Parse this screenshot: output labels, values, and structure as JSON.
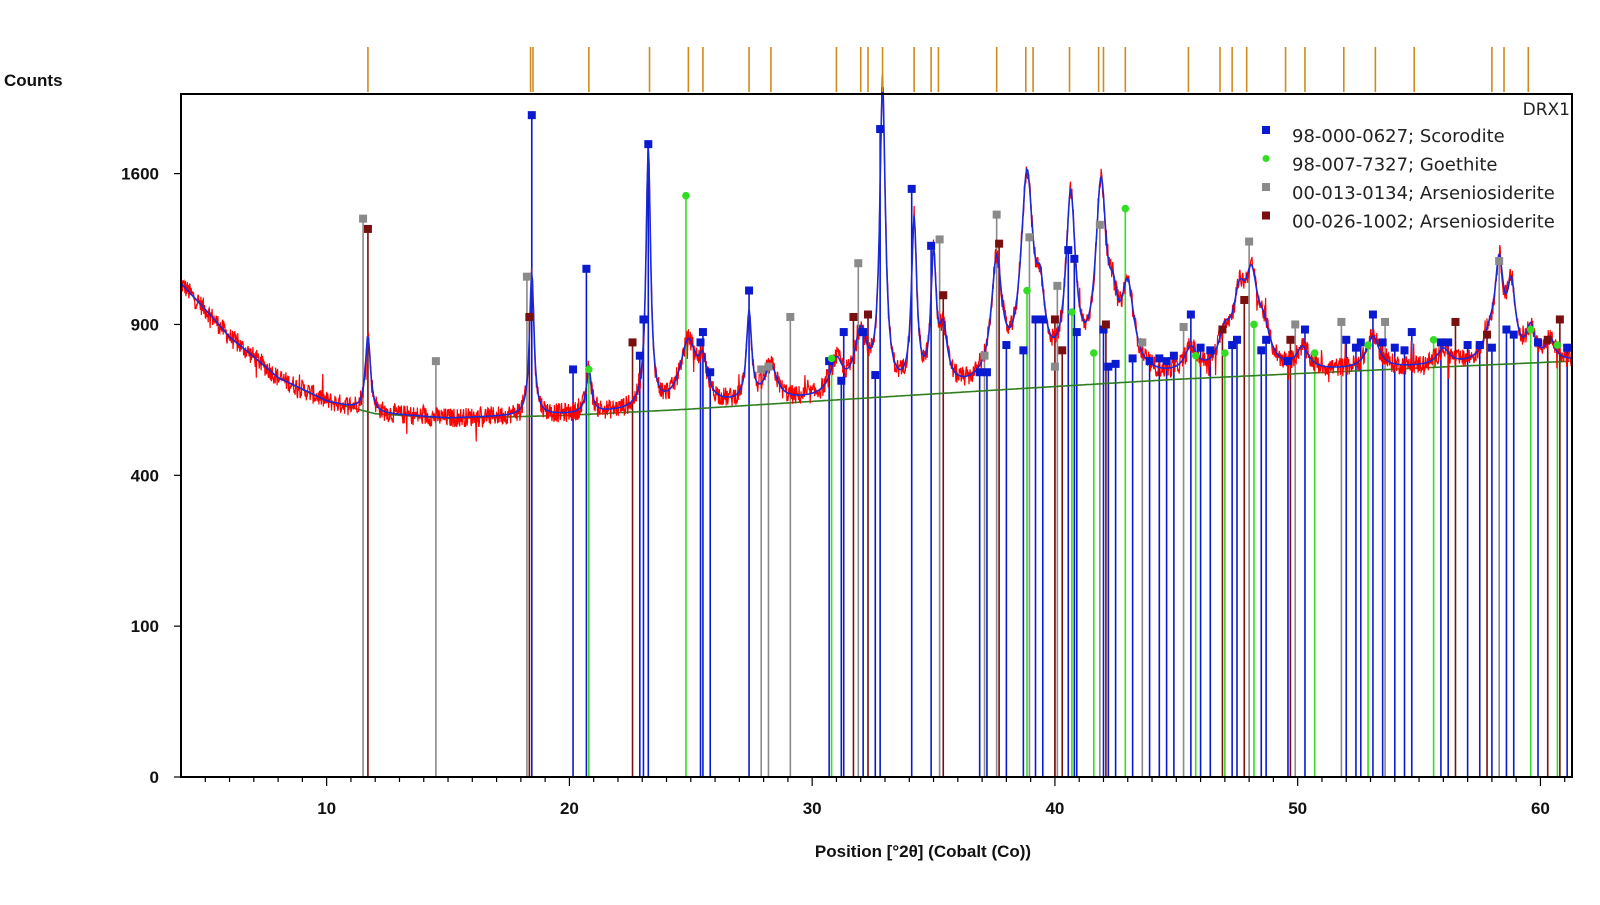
{
  "chart_data": {
    "type": "line",
    "xlabel": "Position [°2θ] (Cobalt (Co))",
    "ylabel": "Counts",
    "series_title": "DRX1",
    "xlim": [
      4,
      61.3
    ],
    "x_ticks": [
      10,
      20,
      30,
      40,
      50,
      60
    ],
    "y_ticks": [
      0,
      100,
      400,
      900,
      1600
    ],
    "y_scale": "sqrt",
    "ylim": [
      0,
      2050
    ],
    "grid": false,
    "legend_position": "top-right",
    "colors": {
      "observed": "#ff0000",
      "calculated": "#1a2ad8",
      "background": "#2e7d1e",
      "difference_ticks": "#d08a1e",
      "scorodite": "#0a1ad0",
      "goethite": "#33dd22",
      "arseniosiderite_013": "#8a8a8a",
      "arseniosiderite_026": "#7a0f0f"
    },
    "legend": [
      {
        "key": "scorodite",
        "label": "98-000-0627; Scorodite",
        "marker": "square",
        "color": "#0a1ad0"
      },
      {
        "key": "goethite",
        "label": "98-007-7327; Goethite",
        "marker": "circle",
        "color": "#33dd22"
      },
      {
        "key": "arseniosiderite_013",
        "label": "00-013-0134; Arseniosiderite",
        "marker": "square",
        "color": "#8a8a8a"
      },
      {
        "key": "arseniosiderite_026",
        "label": "00-026-1002; Arseniosiderite",
        "marker": "square",
        "color": "#7a0f0f"
      }
    ],
    "background_curve": {
      "x": [
        4,
        6,
        8,
        10,
        12,
        15,
        20,
        25,
        30,
        35,
        40,
        45,
        50,
        55,
        61.3
      ],
      "y": [
        1070,
        850,
        700,
        620,
        580,
        565,
        575,
        595,
        620,
        645,
        670,
        695,
        715,
        735,
        760
      ]
    },
    "peaks": [
      {
        "x": 11.7,
        "h": 270,
        "w": 0.12
      },
      {
        "x": 18.45,
        "h": 550,
        "w": 0.1
      },
      {
        "x": 20.8,
        "h": 150,
        "w": 0.12
      },
      {
        "x": 23.25,
        "h": 1150,
        "w": 0.1
      },
      {
        "x": 24.9,
        "h": 230,
        "w": 0.4
      },
      {
        "x": 25.5,
        "h": 120,
        "w": 0.2
      },
      {
        "x": 27.4,
        "h": 330,
        "w": 0.12
      },
      {
        "x": 28.3,
        "h": 120,
        "w": 0.3
      },
      {
        "x": 31.0,
        "h": 120,
        "w": 0.3
      },
      {
        "x": 32.0,
        "h": 220,
        "w": 0.3
      },
      {
        "x": 32.9,
        "h": 1450,
        "w": 0.12
      },
      {
        "x": 34.2,
        "h": 700,
        "w": 0.12
      },
      {
        "x": 35.0,
        "h": 520,
        "w": 0.12
      },
      {
        "x": 35.4,
        "h": 200,
        "w": 0.2
      },
      {
        "x": 37.6,
        "h": 480,
        "w": 0.25
      },
      {
        "x": 38.85,
        "h": 890,
        "w": 0.28
      },
      {
        "x": 39.4,
        "h": 250,
        "w": 0.2
      },
      {
        "x": 40.65,
        "h": 770,
        "w": 0.22
      },
      {
        "x": 41.9,
        "h": 820,
        "w": 0.25
      },
      {
        "x": 42.4,
        "h": 180,
        "w": 0.2
      },
      {
        "x": 43.0,
        "h": 330,
        "w": 0.3
      },
      {
        "x": 45.6,
        "h": 90,
        "w": 0.3
      },
      {
        "x": 47.0,
        "h": 120,
        "w": 0.3
      },
      {
        "x": 47.6,
        "h": 250,
        "w": 0.3
      },
      {
        "x": 48.1,
        "h": 330,
        "w": 0.3
      },
      {
        "x": 48.6,
        "h": 120,
        "w": 0.3
      },
      {
        "x": 50.2,
        "h": 80,
        "w": 0.3
      },
      {
        "x": 53.1,
        "h": 120,
        "w": 0.3
      },
      {
        "x": 56.0,
        "h": 60,
        "w": 0.3
      },
      {
        "x": 57.9,
        "h": 80,
        "w": 0.3
      },
      {
        "x": 58.3,
        "h": 380,
        "w": 0.2
      },
      {
        "x": 58.8,
        "h": 280,
        "w": 0.2
      },
      {
        "x": 59.6,
        "h": 120,
        "w": 0.2
      },
      {
        "x": 60.4,
        "h": 80,
        "w": 0.2
      }
    ],
    "reference_lines": [
      {
        "key": "arseniosiderite_013",
        "x": 11.5,
        "y": 1370
      },
      {
        "key": "arseniosiderite_026",
        "x": 11.7,
        "y": 1320
      },
      {
        "key": "arseniosiderite_013",
        "x": 14.5,
        "y": 760
      },
      {
        "key": "arseniosiderite_013",
        "x": 18.25,
        "y": 1100
      },
      {
        "key": "arseniosiderite_026",
        "x": 18.35,
        "y": 930
      },
      {
        "key": "scorodite",
        "x": 18.45,
        "y": 1925
      },
      {
        "key": "scorodite",
        "x": 20.15,
        "y": 730
      },
      {
        "key": "scorodite",
        "x": 20.7,
        "y": 1135
      },
      {
        "key": "goethite",
        "x": 20.8,
        "y": 730
      },
      {
        "key": "arseniosiderite_026",
        "x": 22.6,
        "y": 830
      },
      {
        "key": "scorodite",
        "x": 22.9,
        "y": 780
      },
      {
        "key": "scorodite",
        "x": 23.05,
        "y": 920
      },
      {
        "key": "scorodite",
        "x": 23.25,
        "y": 1760
      },
      {
        "key": "goethite",
        "x": 24.8,
        "y": 1485
      },
      {
        "key": "scorodite",
        "x": 25.4,
        "y": 830
      },
      {
        "key": "scorodite",
        "x": 25.5,
        "y": 870
      },
      {
        "key": "scorodite",
        "x": 25.8,
        "y": 720
      },
      {
        "key": "scorodite",
        "x": 27.4,
        "y": 1040
      },
      {
        "key": "arseniosiderite_013",
        "x": 27.9,
        "y": 730
      },
      {
        "key": "arseniosiderite_013",
        "x": 28.2,
        "y": 740
      },
      {
        "key": "arseniosiderite_013",
        "x": 29.1,
        "y": 930
      },
      {
        "key": "scorodite",
        "x": 30.7,
        "y": 760
      },
      {
        "key": "goethite",
        "x": 30.8,
        "y": 770
      },
      {
        "key": "scorodite",
        "x": 31.2,
        "y": 690
      },
      {
        "key": "scorodite",
        "x": 31.3,
        "y": 870
      },
      {
        "key": "arseniosiderite_026",
        "x": 31.7,
        "y": 930
      },
      {
        "key": "arseniosiderite_013",
        "x": 31.9,
        "y": 1160
      },
      {
        "key": "scorodite",
        "x": 32.1,
        "y": 870
      },
      {
        "key": "arseniosiderite_026",
        "x": 32.3,
        "y": 940
      },
      {
        "key": "scorodite",
        "x": 32.6,
        "y": 710
      },
      {
        "key": "scorodite",
        "x": 32.8,
        "y": 1845
      },
      {
        "key": "scorodite",
        "x": 34.1,
        "y": 1520
      },
      {
        "key": "scorodite",
        "x": 34.9,
        "y": 1240
      },
      {
        "key": "arseniosiderite_013",
        "x": 35.25,
        "y": 1270
      },
      {
        "key": "arseniosiderite_026",
        "x": 35.4,
        "y": 1020
      },
      {
        "key": "scorodite",
        "x": 36.9,
        "y": 720
      },
      {
        "key": "scorodite",
        "x": 37.2,
        "y": 720
      },
      {
        "key": "arseniosiderite_013",
        "x": 37.1,
        "y": 780
      },
      {
        "key": "arseniosiderite_013",
        "x": 37.6,
        "y": 1390
      },
      {
        "key": "arseniosiderite_026",
        "x": 37.7,
        "y": 1250
      },
      {
        "key": "scorodite",
        "x": 38.0,
        "y": 820
      },
      {
        "key": "scorodite",
        "x": 38.7,
        "y": 800
      },
      {
        "key": "goethite",
        "x": 38.85,
        "y": 1040
      },
      {
        "key": "arseniosiderite_013",
        "x": 38.95,
        "y": 1280
      },
      {
        "key": "scorodite",
        "x": 39.2,
        "y": 920
      },
      {
        "key": "scorodite",
        "x": 39.5,
        "y": 920
      },
      {
        "key": "arseniosiderite_013",
        "x": 40.0,
        "y": 740
      },
      {
        "key": "arseniosiderite_026",
        "x": 40.0,
        "y": 920
      },
      {
        "key": "arseniosiderite_013",
        "x": 40.1,
        "y": 1060
      },
      {
        "key": "arseniosiderite_026",
        "x": 40.3,
        "y": 800
      },
      {
        "key": "scorodite",
        "x": 40.55,
        "y": 1220
      },
      {
        "key": "goethite",
        "x": 40.7,
        "y": 950
      },
      {
        "key": "scorodite",
        "x": 40.8,
        "y": 1180
      },
      {
        "key": "scorodite",
        "x": 40.9,
        "y": 870
      },
      {
        "key": "goethite",
        "x": 41.6,
        "y": 790
      },
      {
        "key": "arseniosiderite_013",
        "x": 41.85,
        "y": 1340
      },
      {
        "key": "scorodite",
        "x": 42.0,
        "y": 880
      },
      {
        "key": "arseniosiderite_026",
        "x": 42.1,
        "y": 900
      },
      {
        "key": "scorodite",
        "x": 42.2,
        "y": 740
      },
      {
        "key": "scorodite",
        "x": 42.5,
        "y": 750
      },
      {
        "key": "goethite",
        "x": 42.9,
        "y": 1420
      },
      {
        "key": "scorodite",
        "x": 43.2,
        "y": 770
      },
      {
        "key": "arseniosiderite_013",
        "x": 43.6,
        "y": 830
      },
      {
        "key": "scorodite",
        "x": 43.9,
        "y": 760
      },
      {
        "key": "scorodite",
        "x": 44.3,
        "y": 770
      },
      {
        "key": "scorodite",
        "x": 44.6,
        "y": 760
      },
      {
        "key": "scorodite",
        "x": 44.9,
        "y": 780
      },
      {
        "key": "arseniosiderite_013",
        "x": 45.3,
        "y": 890
      },
      {
        "key": "scorodite",
        "x": 45.6,
        "y": 940
      },
      {
        "key": "goethite",
        "x": 45.8,
        "y": 780
      },
      {
        "key": "scorodite",
        "x": 46.0,
        "y": 810
      },
      {
        "key": "scorodite",
        "x": 46.4,
        "y": 800
      },
      {
        "key": "arseniosiderite_026",
        "x": 46.9,
        "y": 880
      },
      {
        "key": "goethite",
        "x": 47.0,
        "y": 790
      },
      {
        "key": "scorodite",
        "x": 47.3,
        "y": 820
      },
      {
        "key": "scorodite",
        "x": 47.5,
        "y": 840
      },
      {
        "key": "arseniosiderite_026",
        "x": 47.8,
        "y": 1000
      },
      {
        "key": "arseniosiderite_013",
        "x": 48.0,
        "y": 1260
      },
      {
        "key": "goethite",
        "x": 48.2,
        "y": 900
      },
      {
        "key": "scorodite",
        "x": 48.5,
        "y": 800
      },
      {
        "key": "scorodite",
        "x": 48.7,
        "y": 840
      },
      {
        "key": "scorodite",
        "x": 49.6,
        "y": 760
      },
      {
        "key": "arseniosiderite_026",
        "x": 49.7,
        "y": 840
      },
      {
        "key": "arseniosiderite_013",
        "x": 49.9,
        "y": 900
      },
      {
        "key": "scorodite",
        "x": 50.3,
        "y": 880
      },
      {
        "key": "goethite",
        "x": 50.7,
        "y": 790
      },
      {
        "key": "arseniosiderite_013",
        "x": 51.8,
        "y": 910
      },
      {
        "key": "scorodite",
        "x": 52.0,
        "y": 840
      },
      {
        "key": "scorodite",
        "x": 52.4,
        "y": 810
      },
      {
        "key": "scorodite",
        "x": 52.6,
        "y": 830
      },
      {
        "key": "goethite",
        "x": 52.9,
        "y": 820
      },
      {
        "key": "scorodite",
        "x": 53.1,
        "y": 940
      },
      {
        "key": "scorodite",
        "x": 53.5,
        "y": 830
      },
      {
        "key": "arseniosiderite_013",
        "x": 53.6,
        "y": 910
      },
      {
        "key": "scorodite",
        "x": 54.0,
        "y": 810
      },
      {
        "key": "scorodite",
        "x": 54.4,
        "y": 800
      },
      {
        "key": "scorodite",
        "x": 54.7,
        "y": 870
      },
      {
        "key": "goethite",
        "x": 55.6,
        "y": 840
      },
      {
        "key": "scorodite",
        "x": 55.9,
        "y": 830
      },
      {
        "key": "scorodite",
        "x": 56.2,
        "y": 830
      },
      {
        "key": "arseniosiderite_026",
        "x": 56.5,
        "y": 910
      },
      {
        "key": "scorodite",
        "x": 57.0,
        "y": 820
      },
      {
        "key": "scorodite",
        "x": 57.5,
        "y": 820
      },
      {
        "key": "arseniosiderite_026",
        "x": 57.8,
        "y": 860
      },
      {
        "key": "scorodite",
        "x": 58.0,
        "y": 810
      },
      {
        "key": "arseniosiderite_013",
        "x": 58.3,
        "y": 1170
      },
      {
        "key": "scorodite",
        "x": 58.6,
        "y": 880
      },
      {
        "key": "scorodite",
        "x": 58.9,
        "y": 860
      },
      {
        "key": "goethite",
        "x": 59.6,
        "y": 880
      },
      {
        "key": "scorodite",
        "x": 59.9,
        "y": 830
      },
      {
        "key": "arseniosiderite_026",
        "x": 60.3,
        "y": 840
      },
      {
        "key": "goethite",
        "x": 60.7,
        "y": 820
      },
      {
        "key": "arseniosiderite_026",
        "x": 60.8,
        "y": 920
      },
      {
        "key": "scorodite",
        "x": 61.1,
        "y": 810
      }
    ],
    "top_ticks": [
      11.7,
      18.4,
      18.5,
      20.8,
      23.3,
      24.9,
      25.5,
      27.4,
      28.3,
      31.0,
      32.0,
      32.3,
      32.9,
      34.2,
      34.9,
      35.2,
      37.6,
      38.8,
      39.1,
      40.6,
      41.8,
      42.0,
      42.9,
      45.5,
      46.8,
      47.3,
      47.9,
      49.5,
      50.3,
      51.9,
      53.2,
      54.8,
      58.0,
      58.5,
      59.5
    ]
  }
}
